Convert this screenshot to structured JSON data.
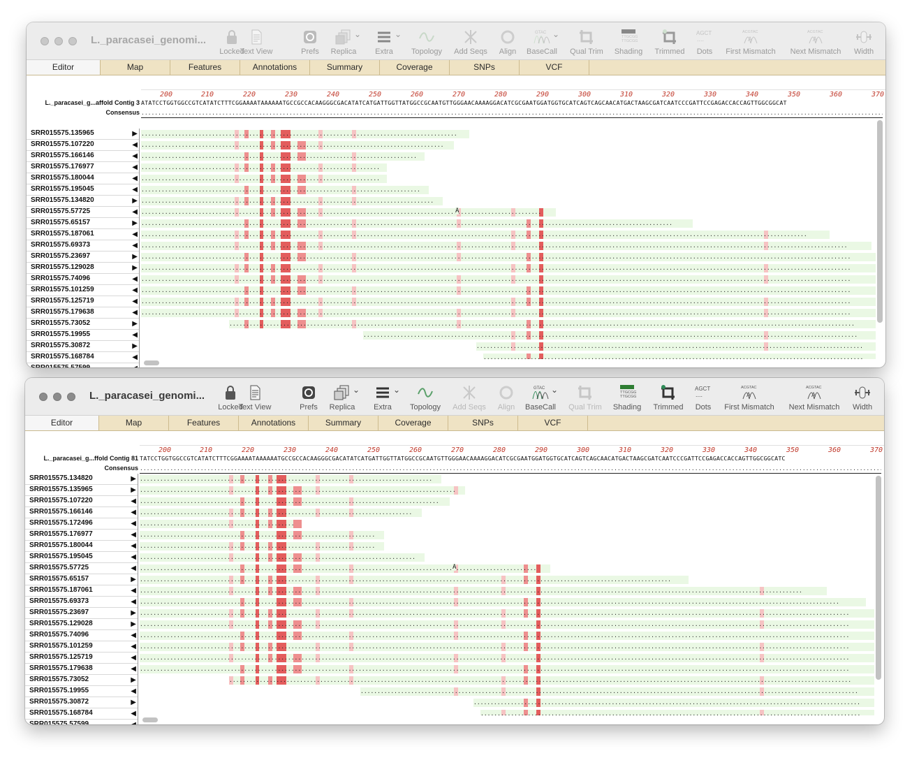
{
  "windows": [
    {
      "title": "L._paracasei_genomi...",
      "reference_label": "L._paracasei_g...affold Contig 3",
      "reference_sequence": "ATATCCTGGTGGCCGTCATATCTTTCGGAAAATAAAAAATGCCGCCACAAGGGCGACATATCATGATTGGTTATGGCCGCAATGTTGGGAACAAAAGGACATCGCGAATGGATGGTGCATCAGTCAGCAACATGACTAAGCGATCAATCCCGATTCCGAGACCACCAGTTGGCGGCAT",
      "consensus_label": "Consensus",
      "active": false,
      "reads": [
        {
          "name": "SRR015575.135965",
          "dir": "right"
        },
        {
          "name": "SRR015575.107220",
          "dir": "left"
        },
        {
          "name": "SRR015575.166146",
          "dir": "left"
        },
        {
          "name": "SRR015575.176977",
          "dir": "left"
        },
        {
          "name": "SRR015575.180044",
          "dir": "left"
        },
        {
          "name": "SRR015575.195045",
          "dir": "left"
        },
        {
          "name": "SRR015575.134820",
          "dir": "right"
        },
        {
          "name": "SRR015575.57725",
          "dir": "left"
        },
        {
          "name": "SRR015575.65157",
          "dir": "right"
        },
        {
          "name": "SRR015575.187061",
          "dir": "left"
        },
        {
          "name": "SRR015575.69373",
          "dir": "left"
        },
        {
          "name": "SRR015575.23697",
          "dir": "right"
        },
        {
          "name": "SRR015575.129028",
          "dir": "right"
        },
        {
          "name": "SRR015575.74096",
          "dir": "left"
        },
        {
          "name": "SRR015575.101259",
          "dir": "left"
        },
        {
          "name": "SRR015575.125719",
          "dir": "left"
        },
        {
          "name": "SRR015575.179638",
          "dir": "left"
        },
        {
          "name": "SRR015575.73052",
          "dir": "right"
        },
        {
          "name": "SRR015575.19955",
          "dir": "left"
        },
        {
          "name": "SRR015575.30872",
          "dir": "right"
        },
        {
          "name": "SRR015575.168784",
          "dir": "left"
        },
        {
          "name": "SRR015575.57599",
          "dir": "left"
        }
      ]
    },
    {
      "title": "L._paracasei_genomi...",
      "reference_label": "L._paracasei_g...ffold Contig 81",
      "reference_sequence": "TATCCTGGTGGCCGTCATATCTTTCGGAAAATAAAAAATGCCGCCACAAGGGCGACATATCATGATTGGTTATGGCCGCAATGTTGGGAACAAAAGGACATCGCGAATGGATGGTGCATCAGTCAGCAACATGACTAAGCGATCAATCCCGATTCCGAGACCACCAGTTGGCGGCATC",
      "consensus_label": "Consensus",
      "active": true,
      "reads": [
        {
          "name": "SRR015575.134820",
          "dir": "right"
        },
        {
          "name": "SRR015575.135965",
          "dir": "right"
        },
        {
          "name": "SRR015575.107220",
          "dir": "left"
        },
        {
          "name": "SRR015575.166146",
          "dir": "left"
        },
        {
          "name": "SRR015575.172496",
          "dir": "left"
        },
        {
          "name": "SRR015575.176977",
          "dir": "left"
        },
        {
          "name": "SRR015575.180044",
          "dir": "left"
        },
        {
          "name": "SRR015575.195045",
          "dir": "left"
        },
        {
          "name": "SRR015575.57725",
          "dir": "left"
        },
        {
          "name": "SRR015575.65157",
          "dir": "right"
        },
        {
          "name": "SRR015575.187061",
          "dir": "left"
        },
        {
          "name": "SRR015575.69373",
          "dir": "left"
        },
        {
          "name": "SRR015575.23697",
          "dir": "right"
        },
        {
          "name": "SRR015575.129028",
          "dir": "right"
        },
        {
          "name": "SRR015575.74096",
          "dir": "left"
        },
        {
          "name": "SRR015575.101259",
          "dir": "left"
        },
        {
          "name": "SRR015575.125719",
          "dir": "left"
        },
        {
          "name": "SRR015575.179638",
          "dir": "left"
        },
        {
          "name": "SRR015575.73052",
          "dir": "right"
        },
        {
          "name": "SRR015575.19955",
          "dir": "left"
        },
        {
          "name": "SRR015575.30872",
          "dir": "right"
        },
        {
          "name": "SRR015575.168784",
          "dir": "left"
        },
        {
          "name": "SRR015575.57599",
          "dir": "left"
        }
      ]
    }
  ],
  "toolbar": [
    {
      "label": "Locked",
      "icon": "lock-icon",
      "enabled": true
    },
    {
      "label": "Text View",
      "icon": "document-icon",
      "enabled": true
    },
    {
      "label": "Prefs",
      "icon": "gear-icon",
      "enabled": true
    },
    {
      "label": "Replica",
      "icon": "replica-icon",
      "enabled": true
    },
    {
      "label": "Extra",
      "icon": "hamburger-icon",
      "enabled": true
    },
    {
      "label": "Topology",
      "icon": "topology-icon",
      "enabled": true
    },
    {
      "label": "Add Seqs",
      "icon": "add-seqs-icon",
      "enabled": false
    },
    {
      "label": "Align",
      "icon": "align-icon",
      "enabled": false
    },
    {
      "label": "BaseCall",
      "icon": "basecall-icon",
      "enabled": true
    },
    {
      "label": "Qual Trim",
      "icon": "qual-trim-icon",
      "enabled": false
    },
    {
      "label": "Shading",
      "icon": "shading-icon",
      "enabled": true
    },
    {
      "label": "Trimmed",
      "icon": "trimmed-icon",
      "enabled": true
    },
    {
      "label": "Dots",
      "icon": "dots-icon",
      "enabled": true
    },
    {
      "label": "First Mismatch",
      "icon": "first-mismatch-icon",
      "enabled": true
    },
    {
      "label": "Next Mismatch",
      "icon": "next-mismatch-icon",
      "enabled": true
    },
    {
      "label": "Width",
      "icon": "width-icon",
      "enabled": true
    }
  ],
  "tabs": [
    "Editor",
    "Map",
    "Features",
    "Annotations",
    "Summary",
    "Coverage",
    "SNPs",
    "VCF"
  ],
  "ruler": [
    "200",
    "210",
    "220",
    "230",
    "240",
    "250",
    "260",
    "270",
    "280",
    "290",
    "300",
    "310",
    "320",
    "330",
    "340",
    "350",
    "360",
    "370"
  ],
  "variant_base": "A",
  "colors": {
    "tab_bar": "#efe3c4",
    "ruler_numbers": "#c0392b",
    "match_shading": "#eaf8e4",
    "mismatch_strong": "#e35d5d",
    "mismatch_light": "#f6c3c3"
  }
}
